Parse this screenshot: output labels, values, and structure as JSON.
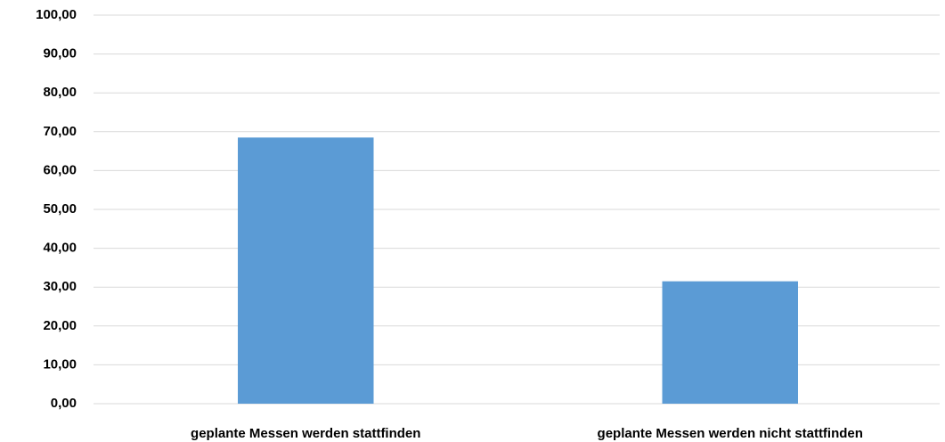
{
  "chart_data": {
    "type": "bar",
    "categories": [
      "geplante Messen werden stattfinden",
      "geplante Messen werden nicht stattfinden"
    ],
    "values": [
      68.5,
      31.5
    ],
    "color": "#5b9bd5",
    "ylim": [
      0,
      100
    ],
    "yticks": [
      {
        "value": 0,
        "label": "0,00"
      },
      {
        "value": 10,
        "label": "10,00"
      },
      {
        "value": 20,
        "label": "20,00"
      },
      {
        "value": 30,
        "label": "30,00"
      },
      {
        "value": 40,
        "label": "40,00"
      },
      {
        "value": 50,
        "label": "50,00"
      },
      {
        "value": 60,
        "label": "60,00"
      },
      {
        "value": 70,
        "label": "70,00"
      },
      {
        "value": 80,
        "label": "80,00"
      },
      {
        "value": 90,
        "label": "90,00"
      },
      {
        "value": 100,
        "label": "100,00"
      }
    ],
    "grid": true
  }
}
